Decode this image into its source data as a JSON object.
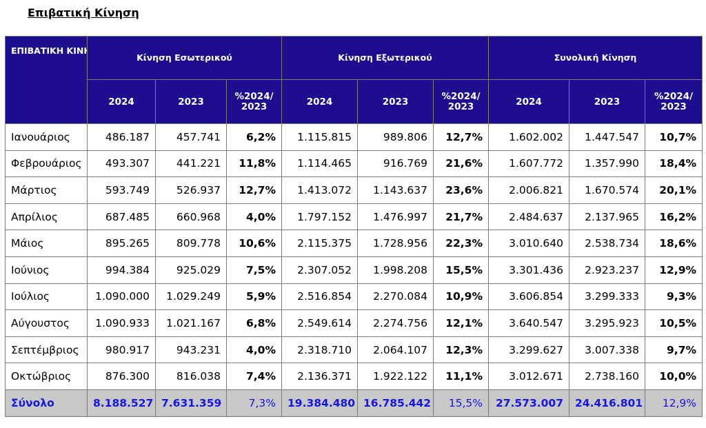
{
  "title": "Επιβατική Κίνηση",
  "header": {
    "corner": "ΕΠΙΒΑΤΙΚΗ ΚΙΝΗΣΗ",
    "groups": [
      "Κίνηση Εσωτερικού",
      "Κίνηση Εξωτερικού",
      "Συνολική Κίνηση"
    ],
    "sub": [
      "2024",
      "2023",
      "%2024/ 2023",
      "2024",
      "2023",
      "%2024/ 2023",
      "2024",
      "2023",
      "%2024/ 2023"
    ]
  },
  "rows": [
    {
      "month": "Ιανουάριος",
      "values": [
        "486.187",
        "457.741",
        "6,2%",
        "1.115.815",
        "989.806",
        "12,7%",
        "1.602.002",
        "1.447.547",
        "10,7%"
      ]
    },
    {
      "month": "Φεβρουάριος",
      "values": [
        "493.307",
        "441.221",
        "11,8%",
        "1.114.465",
        "916.769",
        "21,6%",
        "1.607.772",
        "1.357.990",
        "18,4%"
      ]
    },
    {
      "month": "Μάρτιος",
      "values": [
        "593.749",
        "526.937",
        "12,7%",
        "1.413.072",
        "1.143.637",
        "23,6%",
        "2.006.821",
        "1.670.574",
        "20,1%"
      ]
    },
    {
      "month": "Απρίλιος",
      "values": [
        "687.485",
        "660.968",
        "4,0%",
        "1.797.152",
        "1.476.997",
        "21,7%",
        "2.484.637",
        "2.137.965",
        "16,2%"
      ]
    },
    {
      "month": "Μάιος",
      "values": [
        "895.265",
        "809.778",
        "10,6%",
        "2.115.375",
        "1.728.956",
        "22,3%",
        "3.010.640",
        "2.538.734",
        "18,6%"
      ]
    },
    {
      "month": "Ιούνιος",
      "values": [
        "994.384",
        "925.029",
        "7,5%",
        "2.307.052",
        "1.998.208",
        "15,5%",
        "3.301.436",
        "2.923.237",
        "12,9%"
      ]
    },
    {
      "month": "Ιούλιος",
      "values": [
        "1.090.000",
        "1.029.249",
        "5,9%",
        "2.516.854",
        "2.270.084",
        "10,9%",
        "3.606.854",
        "3.299.333",
        "9,3%"
      ]
    },
    {
      "month": "Αύγουστος",
      "values": [
        "1.090.933",
        "1.021.167",
        "6,8%",
        "2.549.614",
        "2.274.756",
        "12,1%",
        "3.640.547",
        "3.295.923",
        "10,5%"
      ]
    },
    {
      "month": "Σεπτέμβριος",
      "values": [
        "980.917",
        "943.231",
        "4,0%",
        "2.318.710",
        "2.064.107",
        "12,3%",
        "3.299.627",
        "3.007.338",
        "9,7%"
      ]
    },
    {
      "month": "Οκτώβριος",
      "values": [
        "876.300",
        "816.038",
        "7,4%",
        "2.136.371",
        "1.922.122",
        "11,1%",
        "3.012.671",
        "2.738.160",
        "10,0%"
      ]
    }
  ],
  "total": {
    "month": "Σύνολο",
    "values": [
      "8.188.527",
      "7.631.359",
      "7,3%",
      "19.384.480",
      "16.785.442",
      "15,5%",
      "27.573.007",
      "24.416.801",
      "12,9%"
    ]
  },
  "colors": {
    "header_bg": "#1c0e8f",
    "header_text": "#ffffff",
    "total_bg": "#c8c8c8",
    "total_text": "#1515e6"
  }
}
